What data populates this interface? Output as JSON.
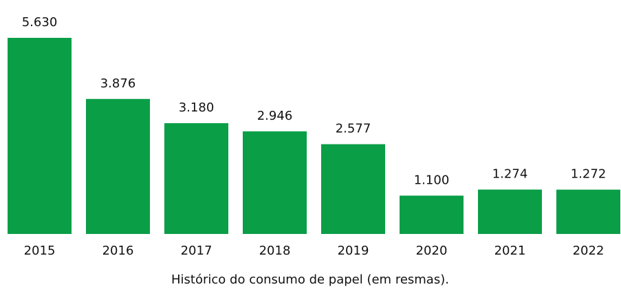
{
  "chart_data": {
    "type": "bar",
    "caption": "Histórico do consumo de papel (em resmas).",
    "categories": [
      "2015",
      "2016",
      "2017",
      "2018",
      "2019",
      "2020",
      "2021",
      "2022"
    ],
    "values": [
      5630,
      3876,
      3180,
      2946,
      2577,
      1100,
      1274,
      1272
    ],
    "value_labels": [
      "5.630",
      "3.876",
      "3.180",
      "2.946",
      "2.577",
      "1.100",
      "1.274",
      "1.272"
    ],
    "color": "#0a9e47"
  }
}
